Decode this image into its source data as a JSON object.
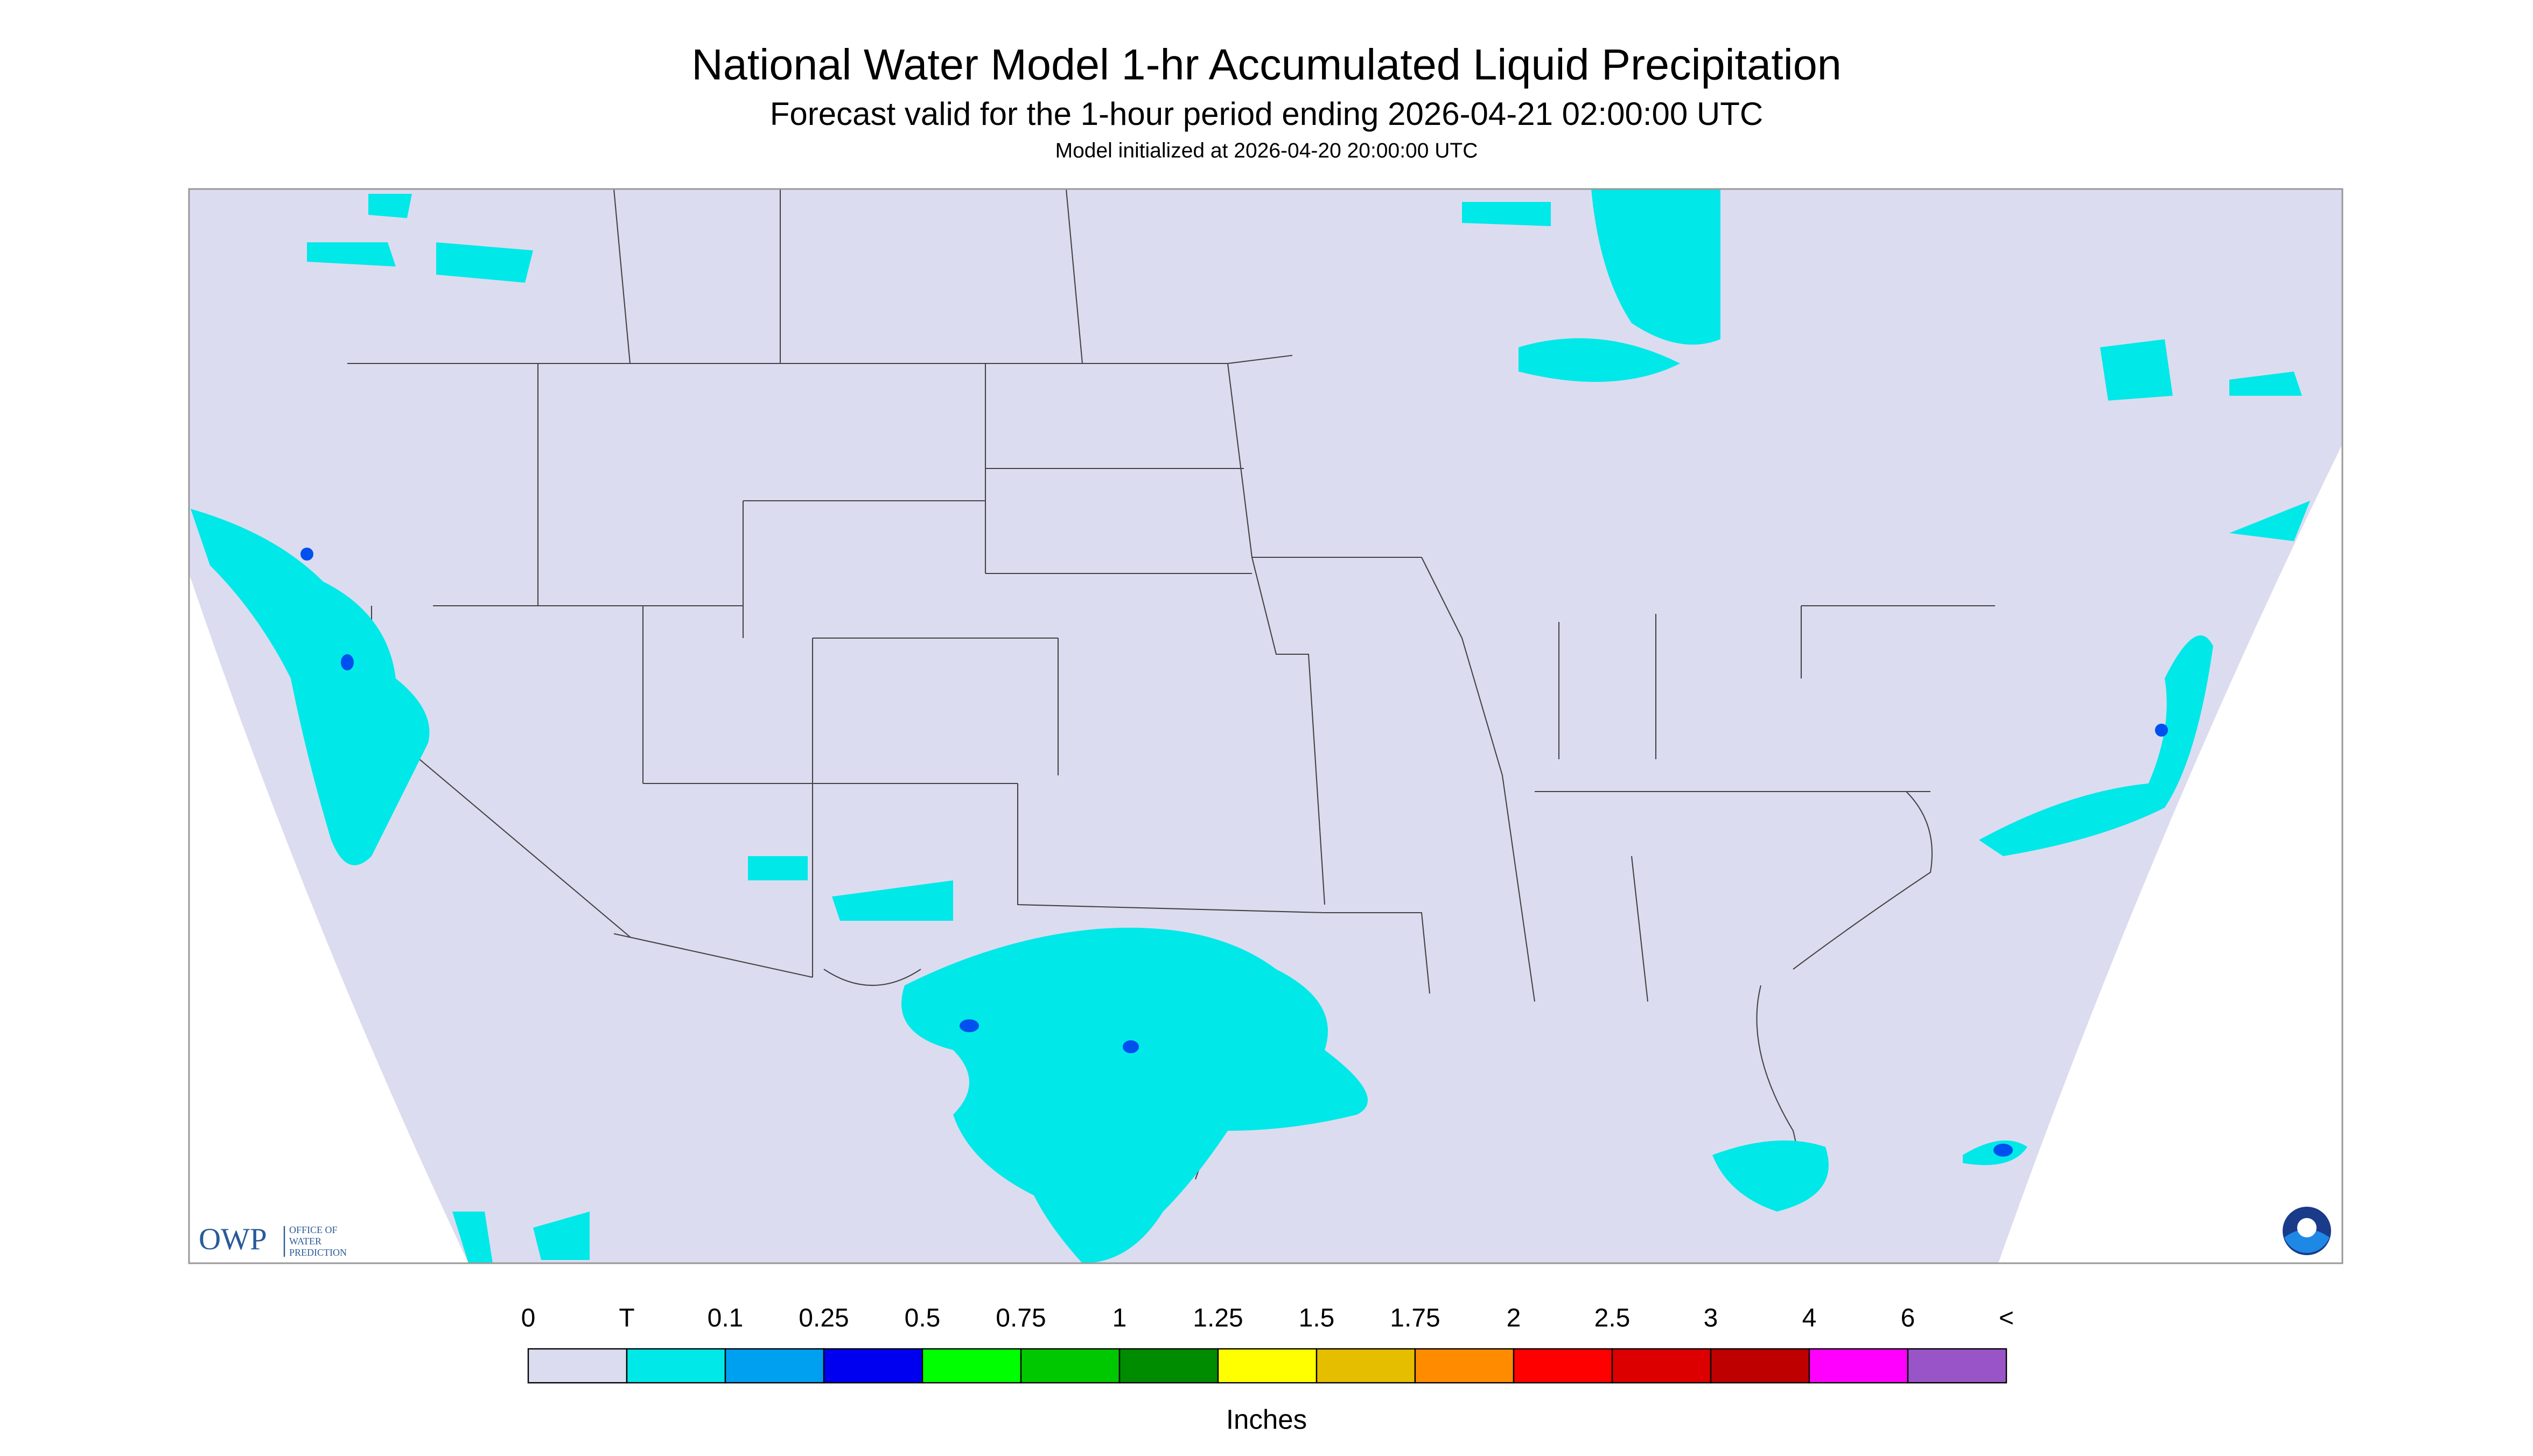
{
  "header": {
    "title": "National Water Model 1-hr Accumulated Liquid Precipitation",
    "subtitle": "Forecast valid for the 1-hour period ending 2026-04-21 02:00:00 UTC",
    "initialized": "Model initialized at 2026-04-20 20:00:00 UTC"
  },
  "legend": {
    "ticks": [
      "0",
      "T",
      "0.1",
      "0.25",
      "0.5",
      "0.75",
      "1",
      "1.25",
      "1.5",
      "1.75",
      "2",
      "2.5",
      "3",
      "4",
      "6",
      "<"
    ],
    "colors": [
      "#dcdcf0",
      "#00e8e8",
      "#00a0f0",
      "#0000f0",
      "#00ff00",
      "#00c800",
      "#008c00",
      "#ffff00",
      "#e6be00",
      "#ff8c00",
      "#ff0000",
      "#dc0000",
      "#be0000",
      "#ff00ff",
      "#9955c8"
    ],
    "unit": "Inches"
  },
  "logo": {
    "name": "OWP",
    "line1": "OFFICE OF",
    "line2": "WATER",
    "line3": "PREDICTION"
  }
}
